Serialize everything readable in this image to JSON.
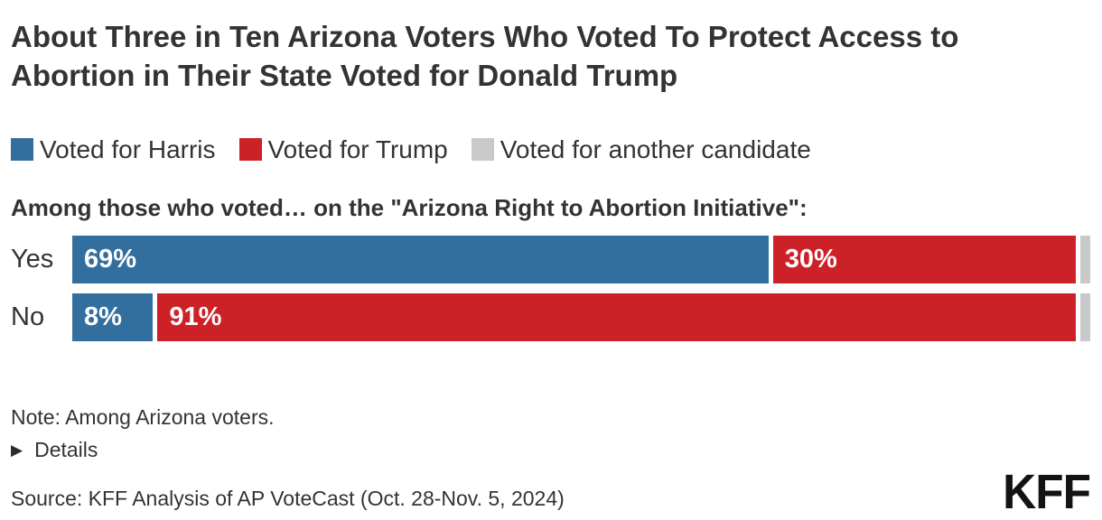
{
  "header": {
    "title": "About Three in Ten Arizona Voters Who Voted To Protect Access to Abortion in Their State Voted for Donald Trump"
  },
  "chart": {
    "prompt": "Among those who voted… on the \"Arizona Right to Abortion Initiative\":"
  },
  "chart_data": {
    "type": "bar",
    "orientation": "horizontal-stacked",
    "title": "About Three in Ten Arizona Voters Who Voted To Protect Access to Abortion in Their State Voted for Donald Trump",
    "subtitle": "Among those who voted… on the \"Arizona Right to Abortion Initiative\":",
    "categories": [
      "Yes",
      "No"
    ],
    "series": [
      {
        "name": "Voted for Harris",
        "color": "#336f9e",
        "values": [
          69,
          8
        ]
      },
      {
        "name": "Voted for Trump",
        "color": "#cd2128",
        "values": [
          30,
          91
        ]
      },
      {
        "name": "Voted for another candidate",
        "color": "#c9c9c9",
        "values": [
          1,
          1
        ]
      }
    ],
    "value_suffix": "%",
    "label_min_value": 5,
    "xlim": [
      0,
      100
    ],
    "grid": false,
    "legend_position": "top"
  },
  "footer": {
    "note": "Note: Among Arizona voters.",
    "details_label": "Details",
    "source": "Source: KFF Analysis of AP VoteCast (Oct. 28-Nov. 5, 2024)",
    "logo": "KFF"
  },
  "colors": {
    "harris_blue": "#336f9e",
    "trump_red": "#cd2128",
    "other_gray": "#c9c9c9",
    "text_dark": "#333333",
    "background": "#ffffff"
  },
  "icons": {
    "details_triangle": "▶"
  }
}
